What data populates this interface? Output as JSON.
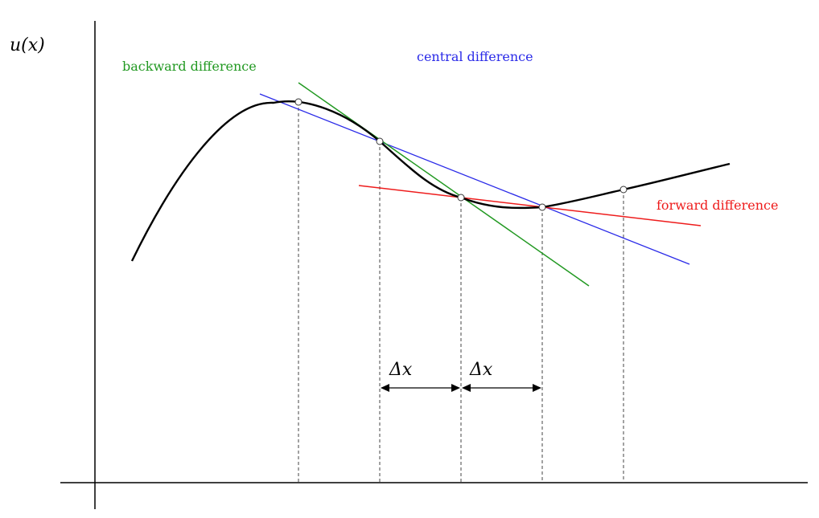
{
  "labels": {
    "y_axis": "u(x)",
    "backward": "backward difference",
    "central": "central difference",
    "forward": "forward difference",
    "dx1": "Δx",
    "dx2": "Δx"
  },
  "colors": {
    "axis": "#000000",
    "curve": "#000000",
    "backward": "#229922",
    "central": "#2a2ae8",
    "forward": "#ee1c1c",
    "guides": "#444444"
  }
}
